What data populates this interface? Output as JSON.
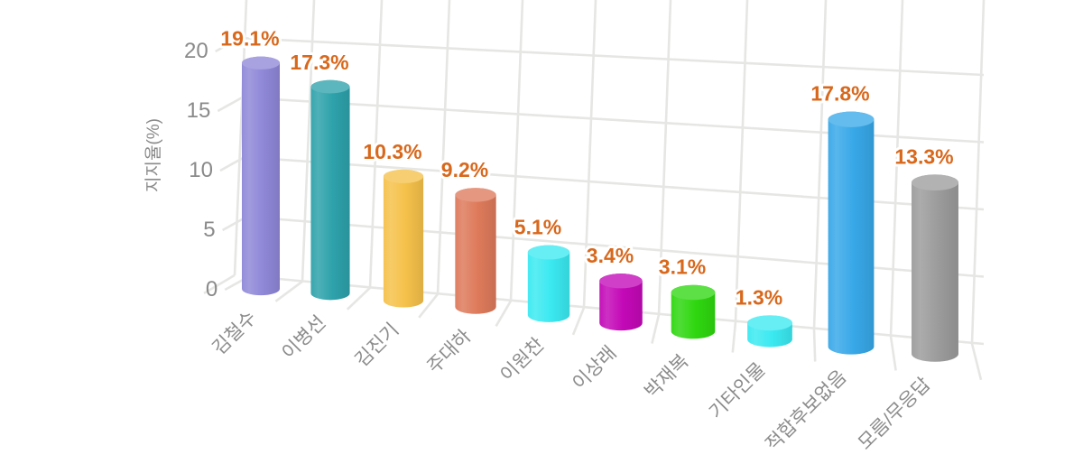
{
  "chart_data": {
    "type": "bar",
    "variant": "3d-cylinder-perspective",
    "title": "",
    "ylabel": "지지율(%)",
    "xlabel": "",
    "ylim": [
      0,
      20
    ],
    "yticks": [
      "0",
      "5",
      "10",
      "15",
      "20"
    ],
    "grid": true,
    "legend": "none",
    "categories": [
      "김철수",
      "이병선",
      "김진기",
      "주대하",
      "이원찬",
      "이상래",
      "박재복",
      "기타인물",
      "적합후보없음",
      "모름/무응답"
    ],
    "values": [
      19.1,
      17.3,
      10.3,
      9.2,
      5.1,
      3.4,
      3.1,
      1.3,
      17.8,
      13.3
    ],
    "value_labels": [
      "19.1%",
      "17.3%",
      "10.3%",
      "9.2%",
      "5.1%",
      "3.4%",
      "3.1%",
      "1.3%",
      "17.8%",
      "13.3%"
    ],
    "bar_colors": [
      "#8f88d8",
      "#2ea2ab",
      "#f5c14a",
      "#de7a5b",
      "#3be9f1",
      "#c309b7",
      "#2fd710",
      "#3be9f1",
      "#38a8e8",
      "#9c9c9c"
    ],
    "colors": {
      "value_label": "#d8681c",
      "value_label_halo": "#ffffff",
      "axis_text": "#8a8a8a",
      "category_text": "#8c8c8c",
      "grid_line": "#e6e6e4",
      "background": "#ffffff"
    }
  }
}
